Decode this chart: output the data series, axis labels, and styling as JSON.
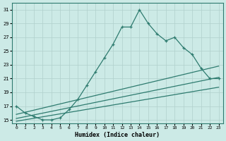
{
  "x": [
    0,
    1,
    2,
    3,
    4,
    5,
    6,
    7,
    8,
    9,
    10,
    11,
    12,
    13,
    14,
    15,
    16,
    17,
    18,
    19,
    20,
    21,
    22,
    23
  ],
  "y_main": [
    17,
    16,
    15.5,
    15,
    15,
    15.3,
    16.5,
    18,
    20,
    22,
    24,
    26,
    28.5,
    28.5,
    31,
    29,
    27.5,
    26.5,
    27,
    25.5,
    24.5,
    22.5,
    21,
    21
  ],
  "line_color": "#2e7b6f",
  "background_color": "#cceae6",
  "grid_color": "#b0d0cc",
  "xlabel": "Humidex (Indice chaleur)",
  "xlim": [
    -0.5,
    23.5
  ],
  "ylim": [
    14.5,
    32
  ],
  "yticks": [
    15,
    17,
    19,
    21,
    23,
    25,
    27,
    29,
    31
  ],
  "xticks": [
    0,
    1,
    2,
    3,
    4,
    5,
    6,
    7,
    8,
    9,
    10,
    11,
    12,
    13,
    14,
    15,
    16,
    17,
    18,
    19,
    20,
    21,
    22,
    23
  ],
  "reg_slope1": 0.305,
  "reg_intercept1": 15.8,
  "reg_slope2": 0.26,
  "reg_intercept2": 15.2,
  "reg_slope3": 0.215,
  "reg_intercept3": 14.8
}
